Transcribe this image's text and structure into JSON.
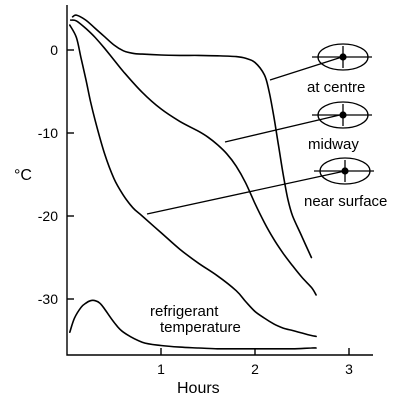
{
  "chart_data": {
    "type": "line",
    "title": "",
    "xlabel": "Hours",
    "ylabel": "°C",
    "xlim": [
      0,
      3.2
    ],
    "ylim": [
      -36.5,
      5.5
    ],
    "xticks": [
      1,
      2,
      3
    ],
    "yticks": [
      0,
      -10,
      -20,
      -30
    ],
    "x_tick_labels": [
      "1",
      "2",
      "3"
    ],
    "y_tick_labels": [
      "0",
      "-10",
      "-20",
      "-30"
    ],
    "grid": false,
    "legend": "none",
    "series": [
      {
        "name": "at centre",
        "x": [
          0.06,
          0.1,
          0.2,
          0.3,
          0.4,
          0.5,
          0.6,
          0.7,
          0.8,
          1.0,
          1.2,
          1.4,
          1.6,
          1.8,
          1.9,
          2.0,
          2.1,
          2.15,
          2.2,
          2.25,
          2.3,
          2.35,
          2.4,
          2.5,
          2.6
        ],
        "y": [
          4.0,
          4.2,
          3.6,
          2.6,
          1.6,
          0.6,
          -0.1,
          -0.4,
          -0.5,
          -0.6,
          -0.65,
          -0.65,
          -0.7,
          -0.8,
          -1.0,
          -1.5,
          -3.0,
          -5.0,
          -8.0,
          -11.5,
          -15.0,
          -18.0,
          -20.0,
          -22.5,
          -25.0
        ]
      },
      {
        "name": "midway",
        "x": [
          0.04,
          0.1,
          0.2,
          0.3,
          0.4,
          0.5,
          0.6,
          0.8,
          1.0,
          1.2,
          1.4,
          1.5,
          1.6,
          1.7,
          1.8,
          1.9,
          2.0,
          2.1,
          2.2,
          2.3,
          2.4,
          2.5,
          2.6,
          2.65
        ],
        "y": [
          3.6,
          3.5,
          2.6,
          1.5,
          0.2,
          -1.2,
          -2.6,
          -5.1,
          -7.1,
          -8.6,
          -9.8,
          -10.5,
          -11.4,
          -12.5,
          -14.0,
          -16.0,
          -18.5,
          -20.8,
          -22.8,
          -24.5,
          -26.0,
          -27.4,
          -28.6,
          -29.5
        ]
      },
      {
        "name": "near surface",
        "x": [
          0.03,
          0.1,
          0.15,
          0.2,
          0.25,
          0.3,
          0.4,
          0.5,
          0.6,
          0.7,
          0.8,
          1.0,
          1.2,
          1.4,
          1.6,
          1.8,
          1.9,
          2.0,
          2.1,
          2.2,
          2.3,
          2.4,
          2.5,
          2.6,
          2.65
        ],
        "y": [
          3.0,
          1.5,
          -1.0,
          -3.5,
          -6.2,
          -8.5,
          -12.5,
          -15.5,
          -17.5,
          -19.0,
          -20.0,
          -22.0,
          -24.0,
          -25.7,
          -27.2,
          -29.0,
          -30.3,
          -31.5,
          -32.3,
          -33.0,
          -33.5,
          -33.8,
          -34.1,
          -34.4,
          -34.5
        ]
      },
      {
        "name": "refrigerant temperature",
        "x": [
          0.03,
          0.08,
          0.15,
          0.2,
          0.25,
          0.3,
          0.35,
          0.4,
          0.5,
          0.6,
          0.8,
          1.0,
          1.2,
          1.4,
          1.6,
          1.8,
          2.0,
          2.2,
          2.4,
          2.6,
          2.65
        ],
        "y": [
          -34.0,
          -32.3,
          -31.0,
          -30.5,
          -30.2,
          -30.2,
          -30.5,
          -31.2,
          -32.8,
          -34.0,
          -35.2,
          -35.6,
          -35.8,
          -35.9,
          -36.0,
          -36.0,
          -36.0,
          -36.0,
          -36.0,
          -35.9,
          -35.9
        ]
      }
    ],
    "annotations": [
      {
        "text": "at centre",
        "points_to": "at centre"
      },
      {
        "text": "midway",
        "points_to": "midway"
      },
      {
        "text": "near surface",
        "points_to": "near surface"
      },
      {
        "text": "refrigerant",
        "points_to": "refrigerant temperature"
      },
      {
        "text": "temperature",
        "points_to": "refrigerant temperature"
      }
    ]
  }
}
